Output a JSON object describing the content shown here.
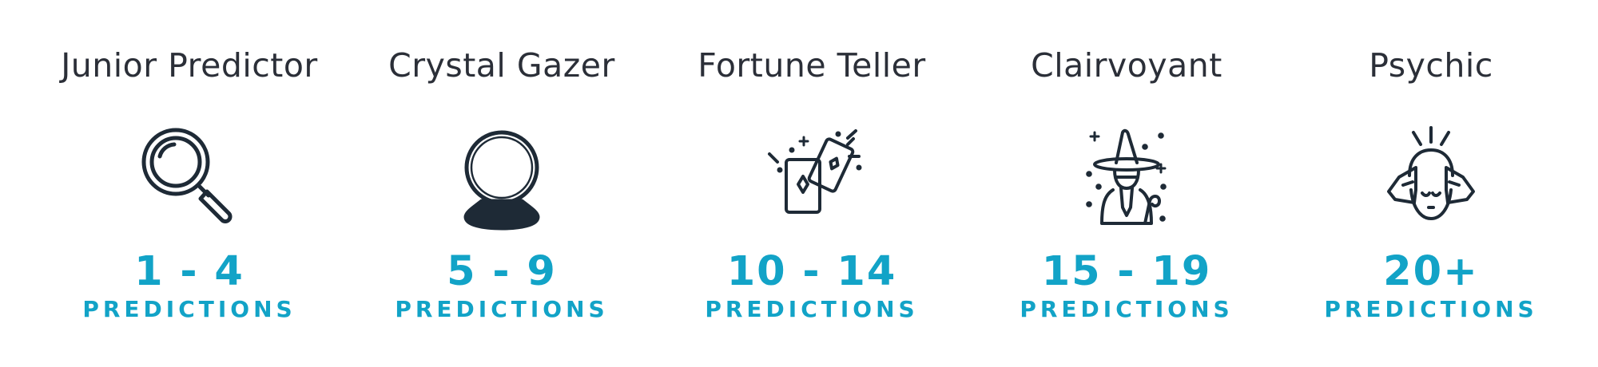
{
  "colors": {
    "accent": "#12a3c7",
    "text": "#2b2f38",
    "icon": "#1e2a36",
    "background": "#ffffff"
  },
  "tiers": [
    {
      "title": "Junior Predictor",
      "icon": "magnifying-glass-icon",
      "range": "1 - 4",
      "unit": "PREDICTIONS"
    },
    {
      "title": "Crystal Gazer",
      "icon": "crystal-ball-icon",
      "range": "5 - 9",
      "unit": "PREDICTIONS"
    },
    {
      "title": "Fortune Teller",
      "icon": "tarot-cards-icon",
      "range": "10 - 14",
      "unit": "PREDICTIONS"
    },
    {
      "title": "Clairvoyant",
      "icon": "wizard-icon",
      "range": "15 - 19",
      "unit": "PREDICTIONS"
    },
    {
      "title": "Psychic",
      "icon": "psychic-head-icon",
      "range": "20+",
      "unit": "PREDICTIONS"
    }
  ]
}
